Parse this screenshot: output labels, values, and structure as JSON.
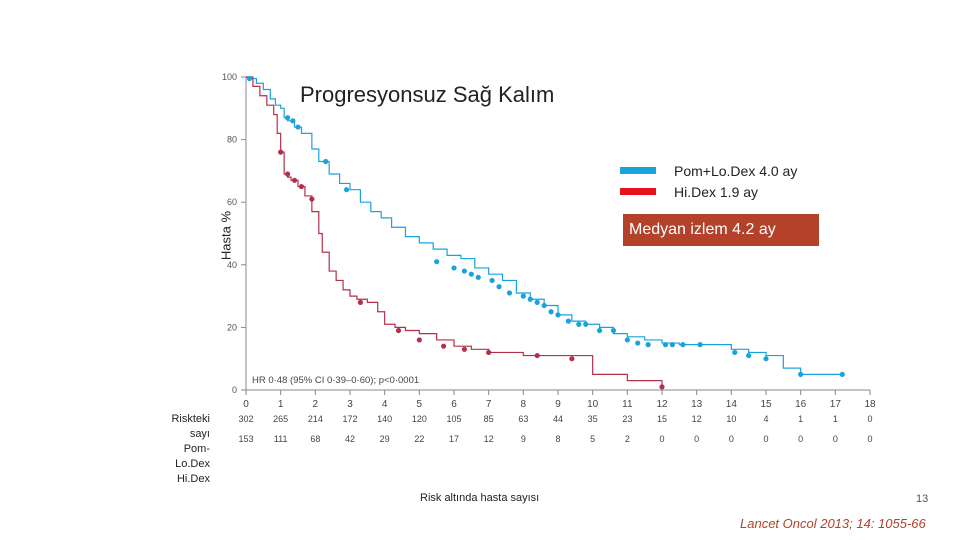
{
  "slide": {
    "title": "Progresyonsuz Sağ Kalım",
    "median_followup": "Medyan izlem 4.2 ay",
    "risk_title": "Risk altında hasta sayısı",
    "page_number": "13",
    "citation": "Lancet Oncol 2013; 14: 1055-66"
  },
  "chart_data": {
    "type": "line",
    "ylabel": "Hasta %",
    "xlabel": "",
    "xlim": [
      0,
      18
    ],
    "ylim": [
      0,
      100
    ],
    "yticks": [
      0,
      20,
      40,
      60,
      80,
      100
    ],
    "xticks": [
      0,
      1,
      2,
      3,
      4,
      5,
      6,
      7,
      8,
      9,
      10,
      11,
      12,
      13,
      14,
      15,
      16,
      17,
      18
    ],
    "hr_text": "HR 0·48 (95% CI 0·39–0·60); p<0·0001",
    "legend": [
      {
        "label": "Pom+Lo.Dex 4.0 ay",
        "color": "#19a3dd"
      },
      {
        "label": "Hi.Dex 1.9 ay",
        "color": "#e3141b"
      }
    ],
    "series": [
      {
        "name": "Pom+Lo.Dex",
        "color": "#19a3dd",
        "x": [
          0,
          0.15,
          0.3,
          0.5,
          0.7,
          0.85,
          1.0,
          1.1,
          1.2,
          1.4,
          1.6,
          1.9,
          2.1,
          2.4,
          2.7,
          3.0,
          3.3,
          3.6,
          3.9,
          4.2,
          4.6,
          5.0,
          5.4,
          5.8,
          6.2,
          6.6,
          7.0,
          7.4,
          7.8,
          8.2,
          8.6,
          9.0,
          9.4,
          9.8,
          10.2,
          10.6,
          11.0,
          11.5,
          12.0,
          12.5,
          13.0,
          13.5,
          14.0,
          14.5,
          15.0,
          15.5,
          16.0,
          16.5,
          17.2
        ],
        "y": [
          100,
          99.5,
          98,
          96,
          93,
          91,
          90,
          87,
          86,
          84,
          82,
          77,
          73,
          69,
          66,
          64,
          60,
          57,
          55,
          52,
          49,
          47,
          45,
          43,
          42,
          39,
          37,
          35,
          31,
          29,
          27,
          24,
          22,
          21,
          20,
          18,
          17,
          16,
          15,
          14.5,
          14.5,
          14.5,
          13,
          12,
          11,
          7,
          5,
          5,
          5
        ]
      },
      {
        "name": "Hi.Dex",
        "color": "#b4304a",
        "x": [
          0,
          0.2,
          0.4,
          0.6,
          0.8,
          0.9,
          1.0,
          1.1,
          1.2,
          1.3,
          1.5,
          1.7,
          1.9,
          2.1,
          2.2,
          2.4,
          2.6,
          2.8,
          3.0,
          3.2,
          3.5,
          3.8,
          4.0,
          4.3,
          4.6,
          5.0,
          5.5,
          6.0,
          6.5,
          7.0,
          7.5,
          8.0,
          9.0,
          10.0,
          11.0,
          11.5,
          12.0
        ],
        "y": [
          100,
          97,
          94,
          91,
          88,
          82,
          76,
          69,
          68,
          67,
          65,
          62,
          57,
          50,
          44,
          38,
          35,
          32,
          30,
          29,
          28,
          25,
          21,
          20,
          19,
          18,
          16,
          14,
          13,
          12,
          12,
          11,
          11,
          5,
          3,
          3,
          1
        ]
      }
    ],
    "censor_marks": {
      "Pom+Lo.Dex": {
        "x": [
          0.1,
          1.2,
          1.35,
          1.5,
          2.3,
          2.9,
          5.5,
          6.0,
          6.3,
          6.5,
          6.7,
          7.1,
          7.3,
          7.6,
          8.0,
          8.2,
          8.4,
          8.6,
          8.8,
          9.0,
          9.3,
          9.6,
          9.8,
          10.2,
          10.6,
          11.0,
          11.3,
          11.6,
          12.1,
          12.3,
          12.6,
          13.1,
          14.1,
          14.5,
          15.0,
          16.0,
          17.2
        ],
        "y": [
          99.5,
          87,
          86,
          84,
          73,
          64,
          41,
          39,
          38,
          37,
          36,
          35,
          33,
          31,
          30,
          29,
          28,
          27,
          25,
          24,
          22,
          21,
          21,
          19,
          19,
          16,
          15,
          14.5,
          14.5,
          14.5,
          14.5,
          14.5,
          12,
          11,
          10,
          5,
          5
        ]
      },
      "Hi.Dex": {
        "x": [
          1.0,
          1.2,
          1.4,
          1.6,
          1.9,
          3.3,
          4.4,
          5.0,
          5.7,
          6.3,
          7.0,
          8.4,
          9.4,
          12.0
        ],
        "y": [
          76,
          69,
          67,
          65,
          61,
          28,
          19,
          16,
          14,
          13,
          12,
          11,
          10,
          1
        ]
      }
    },
    "risk_table": {
      "header": "Riskteki sayı",
      "rows": [
        {
          "label": "Pom-Lo.Dex",
          "values": [
            "302",
            "265",
            "214",
            "172",
            "140",
            "120",
            "105",
            "85",
            "63",
            "44",
            "35",
            "23",
            "15",
            "12",
            "10",
            "4",
            "1",
            "1",
            "0"
          ]
        },
        {
          "label": "Hi.Dex",
          "values": [
            "153",
            "111",
            "68",
            "42",
            "29",
            "22",
            "17",
            "12",
            "9",
            "8",
            "5",
            "2",
            "0",
            "0",
            "0",
            "0",
            "0",
            "0",
            "0"
          ]
        }
      ]
    }
  }
}
